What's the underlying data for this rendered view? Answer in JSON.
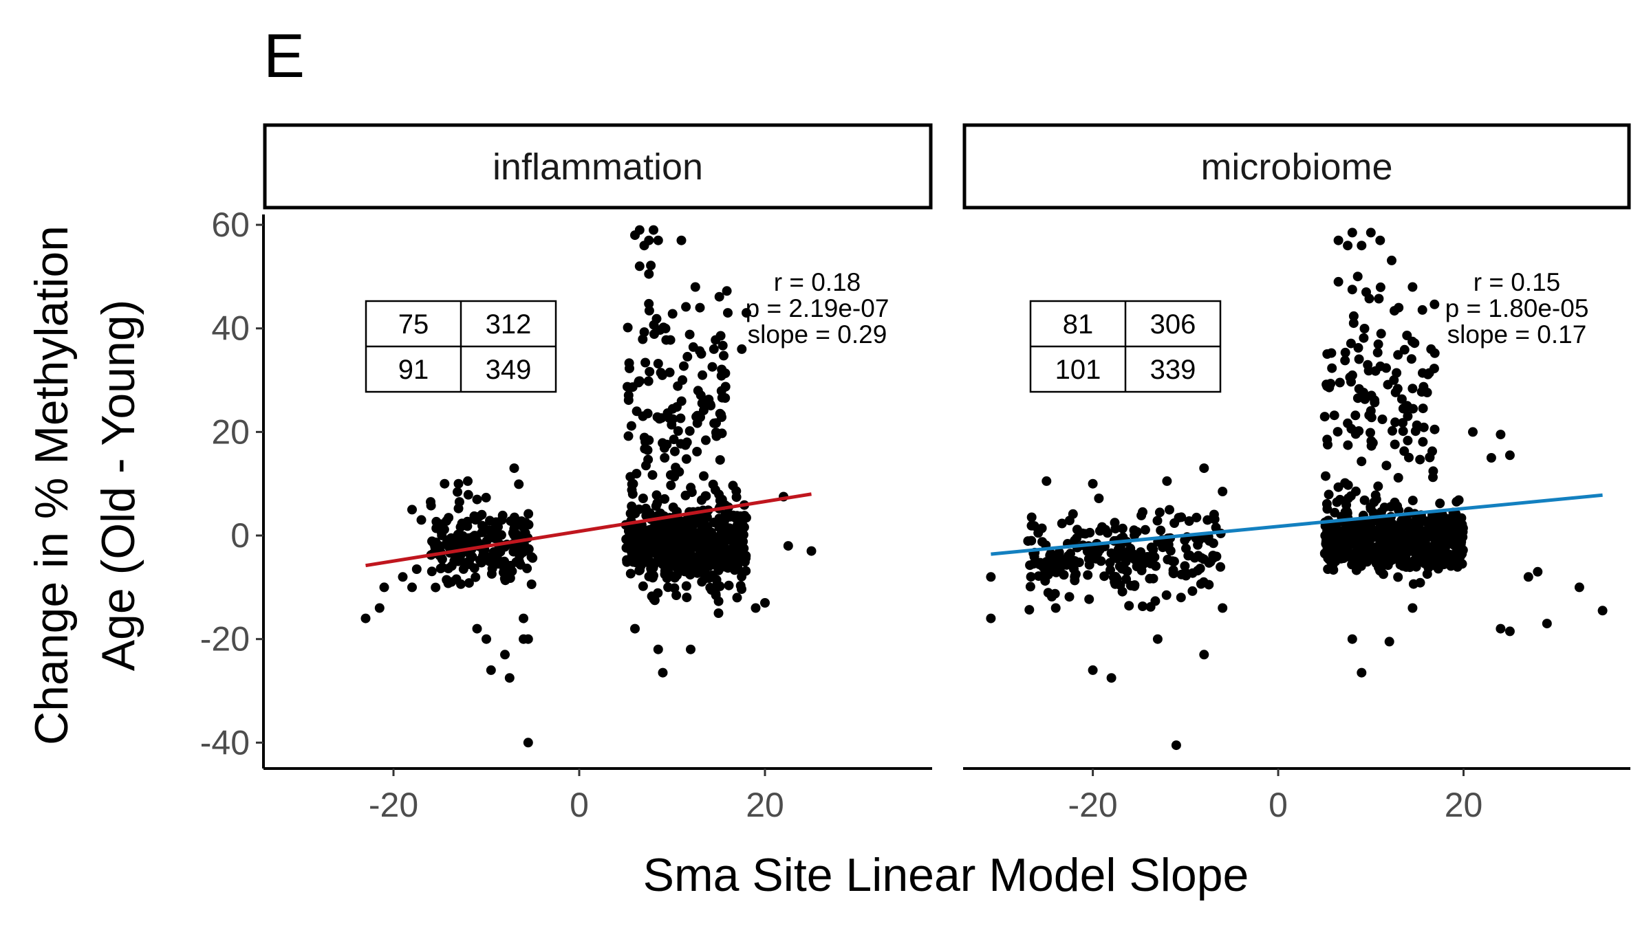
{
  "panel_label": "E",
  "chart_data": {
    "type": "scatter",
    "xlabel": "Sma Site Linear Model Slope",
    "ylabel_lines": [
      "Change in % Methylation",
      "Age (Old - Young)"
    ],
    "y_ticks": [
      60,
      40,
      20,
      0,
      -20,
      -40
    ],
    "y_tick_labels": [
      "60",
      "40",
      "20",
      "0",
      "-20",
      "-40"
    ],
    "ylim": [
      -45,
      62
    ],
    "grid": false,
    "panels": [
      {
        "title": "inflammation",
        "xlim": [
          -34,
          38
        ],
        "x_ticks": [
          -20,
          0,
          20
        ],
        "x_tick_labels": [
          "-20",
          "0",
          "20"
        ],
        "fit_color": "#C0161E",
        "fit_line": {
          "x": [
            -23,
            25
          ],
          "y": [
            -5.8,
            8
          ]
        },
        "stats": [
          "r = 0.18",
          "p = 2.19e-07",
          "slope = 0.29"
        ],
        "contingency": [
          [
            "75",
            "312"
          ],
          [
            "91",
            "349"
          ]
        ],
        "clusters": [
          {
            "x": [
              -16,
              -5
            ],
            "y": [
              -2,
              4
            ],
            "n": 180
          },
          {
            "x": [
              5,
              18
            ],
            "y": [
              -2,
              4
            ],
            "n": 520
          },
          {
            "x": [
              5,
              16
            ],
            "y": [
              25,
              10
            ],
            "n": 130
          }
        ],
        "points": [
          [
            -23,
            -16
          ],
          [
            -21.5,
            -14
          ],
          [
            -21,
            -10
          ],
          [
            -19,
            -8
          ],
          [
            -18,
            -10
          ],
          [
            -17.5,
            -6.5
          ],
          [
            -18,
            5
          ],
          [
            -17,
            3
          ],
          [
            -16,
            6.5
          ],
          [
            -14.5,
            10
          ],
          [
            -13,
            10
          ],
          [
            -12,
            10.5
          ],
          [
            -7,
            13
          ],
          [
            -11,
            -18
          ],
          [
            -10,
            -20
          ],
          [
            -9.5,
            -26
          ],
          [
            -8,
            -23
          ],
          [
            -7.5,
            -27.5
          ],
          [
            -6,
            -20
          ],
          [
            -5.5,
            -20
          ],
          [
            -6,
            -16
          ],
          [
            -5.5,
            -40
          ],
          [
            6,
            58
          ],
          [
            6.5,
            59
          ],
          [
            8,
            59
          ],
          [
            8.5,
            57
          ],
          [
            7,
            56
          ],
          [
            7.5,
            57
          ],
          [
            11,
            57
          ],
          [
            6.5,
            52
          ],
          [
            7.5,
            50.5
          ],
          [
            12.5,
            48
          ],
          [
            13,
            44
          ],
          [
            14.5,
            36
          ],
          [
            16,
            43
          ],
          [
            18,
            43
          ],
          [
            17.5,
            36
          ],
          [
            22,
            7.5
          ],
          [
            22.5,
            -2
          ],
          [
            25,
            -3
          ],
          [
            20,
            -13
          ],
          [
            19,
            -14
          ],
          [
            17,
            -12
          ],
          [
            6,
            -18
          ],
          [
            8.5,
            -22
          ],
          [
            9,
            -26.5
          ],
          [
            12,
            -22
          ],
          [
            15,
            -15
          ]
        ]
      },
      {
        "title": "microbiome",
        "xlim": [
          -34,
          38
        ],
        "x_ticks": [
          -20,
          0,
          20
        ],
        "x_tick_labels": [
          "-20",
          "0",
          "20"
        ],
        "fit_color": "#1380C0",
        "fit_line": {
          "x": [
            -31,
            35
          ],
          "y": [
            -3.6,
            7.8
          ]
        },
        "stats": [
          "r = 0.15",
          "p = 1.80e-05",
          "slope = 0.17"
        ],
        "contingency": [
          [
            "81",
            "306"
          ],
          [
            "101",
            "339"
          ]
        ],
        "clusters": [
          {
            "x": [
              -27,
              -6
            ],
            "y": [
              -4,
              4
            ],
            "n": 230
          },
          {
            "x": [
              5,
              20
            ],
            "y": [
              -1,
              3
            ],
            "n": 560
          },
          {
            "x": [
              5,
              17
            ],
            "y": [
              25,
              10
            ],
            "n": 130
          }
        ],
        "points": [
          [
            -31,
            -8
          ],
          [
            -31,
            -16
          ],
          [
            -24,
            -14
          ],
          [
            -25,
            10.5
          ],
          [
            -20,
            10
          ],
          [
            -12,
            10.5
          ],
          [
            -8,
            13
          ],
          [
            -6,
            8.5
          ],
          [
            -20,
            -26
          ],
          [
            -18,
            -27.5
          ],
          [
            -13,
            -20
          ],
          [
            -11,
            -40.5
          ],
          [
            -8,
            -23
          ],
          [
            -6,
            -14
          ],
          [
            6.5,
            57
          ],
          [
            8,
            58.5
          ],
          [
            10,
            58.5
          ],
          [
            7.5,
            56
          ],
          [
            9,
            56
          ],
          [
            11,
            57
          ],
          [
            6.5,
            49
          ],
          [
            8,
            47.5
          ],
          [
            9.5,
            47
          ],
          [
            14.5,
            48
          ],
          [
            13,
            44
          ],
          [
            16.5,
            36
          ],
          [
            24,
            19.5
          ],
          [
            23,
            15
          ],
          [
            25,
            15.5
          ],
          [
            21,
            20
          ],
          [
            27,
            -8
          ],
          [
            28,
            -7
          ],
          [
            32.5,
            -10
          ],
          [
            35,
            -14.5
          ],
          [
            24,
            -18
          ],
          [
            25,
            -18.5
          ],
          [
            29,
            -17
          ],
          [
            8,
            -20
          ],
          [
            9,
            -26.5
          ],
          [
            12,
            -20.5
          ],
          [
            14.5,
            -14
          ]
        ]
      }
    ]
  }
}
